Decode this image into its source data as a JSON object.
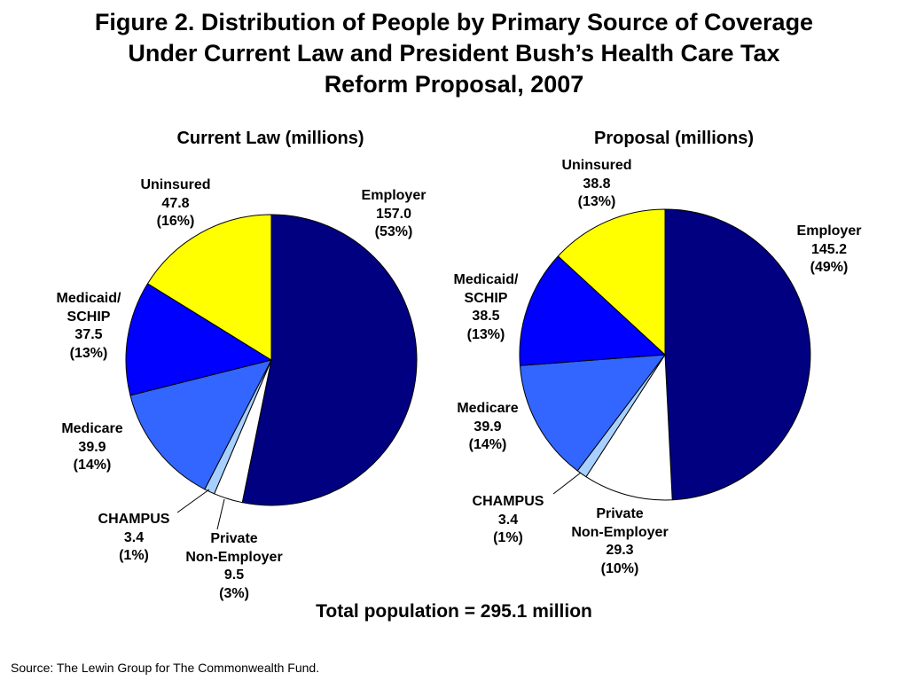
{
  "title_lines": [
    "Figure 2. Distribution of People by Primary Source of Coverage",
    "Under Current Law and President Bush’s Health Care Tax",
    "Reform Proposal, 2007"
  ],
  "total_text": "Total population = 295.1 million",
  "source_text": "Source: The Lewin Group for The Commonwealth Fund.",
  "chart_data": [
    {
      "type": "pie",
      "title": "Current Law (millions)",
      "start_angle_deg": 0,
      "direction": "clockwise",
      "slices": [
        {
          "name": "Employer",
          "value": 157.0,
          "value_label": "157.0",
          "percent_label": "(53%)",
          "color": "#000080"
        },
        {
          "name": "Private Non-Employer",
          "name_lines": [
            "Private",
            "Non-Employer"
          ],
          "value": 9.5,
          "value_label": "9.5",
          "percent_label": "(3%)",
          "color": "#FFFFFF"
        },
        {
          "name": "CHAMPUS",
          "name_lines": [
            "CHAMPUS"
          ],
          "value": 3.4,
          "value_label": "3.4",
          "percent_label": "(1%)",
          "color": "#A8D0FF"
        },
        {
          "name": "Medicare",
          "name_lines": [
            "Medicare"
          ],
          "value": 39.9,
          "value_label": "39.9",
          "percent_label": "(14%)",
          "color": "#3366FF"
        },
        {
          "name": "Medicaid/SCHIP",
          "name_lines": [
            "Medicaid/",
            "SCHIP"
          ],
          "value": 37.5,
          "value_label": "37.5",
          "percent_label": "(13%)",
          "color": "#0000FF"
        },
        {
          "name": "Uninsured",
          "name_lines": [
            "Uninsured"
          ],
          "value": 47.8,
          "value_label": "47.8",
          "percent_label": "(16%)",
          "color": "#FFFF00"
        }
      ]
    },
    {
      "type": "pie",
      "title": "Proposal (millions)",
      "start_angle_deg": 0,
      "direction": "clockwise",
      "slices": [
        {
          "name": "Employer",
          "value": 145.2,
          "value_label": "145.2",
          "percent_label": "(49%)",
          "color": "#000080"
        },
        {
          "name": "Private Non-Employer",
          "name_lines": [
            "Private",
            "Non-Employer"
          ],
          "value": 29.3,
          "value_label": "29.3",
          "percent_label": "(10%)",
          "color": "#FFFFFF"
        },
        {
          "name": "CHAMPUS",
          "name_lines": [
            "CHAMPUS"
          ],
          "value": 3.4,
          "value_label": "3.4",
          "percent_label": "(1%)",
          "color": "#A8D0FF"
        },
        {
          "name": "Medicare",
          "name_lines": [
            "Medicare"
          ],
          "value": 39.9,
          "value_label": "39.9",
          "percent_label": "(14%)",
          "color": "#3366FF"
        },
        {
          "name": "Medicaid/SCHIP",
          "name_lines": [
            "Medicaid/",
            "SCHIP"
          ],
          "value": 38.5,
          "value_label": "38.5",
          "percent_label": "(13%)",
          "color": "#0000FF"
        },
        {
          "name": "Uninsured",
          "name_lines": [
            "Uninsured"
          ],
          "value": 38.8,
          "value_label": "38.8",
          "percent_label": "(13%)",
          "color": "#FFFF00"
        }
      ]
    }
  ]
}
